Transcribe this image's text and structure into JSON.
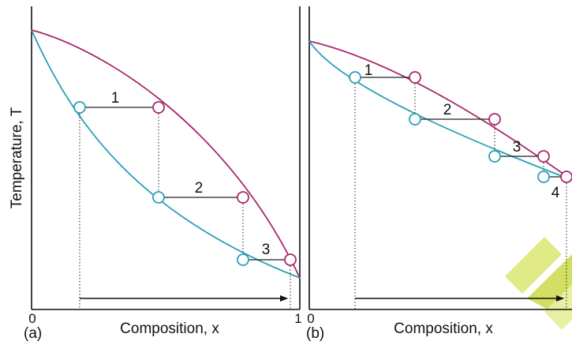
{
  "colors": {
    "liquid_curve": "#2aa0b8",
    "vapour_curve": "#a8286b",
    "axis": "#111111",
    "watermark": "#c8d84a"
  },
  "ylabel": "Temperature, T",
  "xlabel_a": "Composition, x",
  "xlabel_b": "Composition, x",
  "tick_zero_a": "0",
  "tick_one_a": "1",
  "tick_zero_b": "0",
  "panel_a_label": "(a)",
  "panel_b_label": "(b)",
  "panel_a_steps": [
    "1",
    "2",
    "3"
  ],
  "panel_b_steps": [
    "1",
    "2",
    "3",
    "4"
  ]
}
